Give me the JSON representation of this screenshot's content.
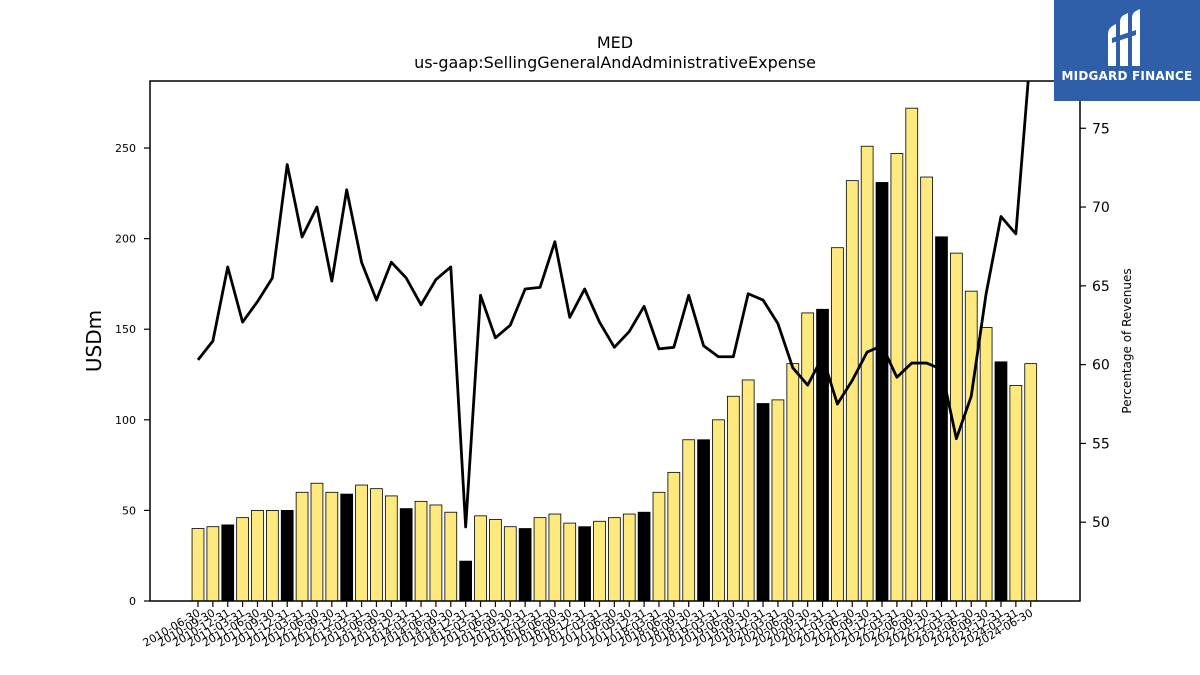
{
  "logo": {
    "text": "MIDGARD FINANCE",
    "icon": "midgard-m-logo",
    "color": "#2f5fa8"
  },
  "chart_data": {
    "type": "bar+line",
    "title": "MED",
    "subtitle": "us-gaap:SellingGeneralAndAdministrativeExpense",
    "ylabel": "USDm",
    "y2label": "Percentage of Revenues",
    "ylim": [
      0,
      287
    ],
    "y2lim": [
      45,
      78
    ],
    "yticks": [
      0,
      50,
      100,
      150,
      200,
      250
    ],
    "y2ticks": [
      50,
      55,
      60,
      65,
      70,
      75
    ],
    "grid": false,
    "colors": {
      "quarter_bar": "#fde97e",
      "annual_bar": "#000000",
      "line": "#000000"
    },
    "categories": [
      "2010-06-30",
      "2010-09-30",
      "2010-12-31",
      "2011-03-31",
      "2011-06-30",
      "2011-09-30",
      "2011-12-31",
      "2012-03-31",
      "2012-06-30",
      "2012-09-30",
      "2012-12-31",
      "2013-03-31",
      "2013-06-30",
      "2013-09-30",
      "2013-12-31",
      "2014-03-31",
      "2014-06-30",
      "2014-09-30",
      "2014-12-31",
      "2015-03-31",
      "2015-06-30",
      "2015-09-30",
      "2015-12-31",
      "2016-03-31",
      "2016-06-30",
      "2016-09-30",
      "2016-12-31",
      "2017-03-31",
      "2017-06-30",
      "2017-09-30",
      "2017-12-31",
      "2018-03-31",
      "2018-06-30",
      "2018-09-30",
      "2018-12-31",
      "2019-03-31",
      "2019-06-30",
      "2019-09-30",
      "2019-12-31",
      "2020-03-31",
      "2020-06-30",
      "2020-09-30",
      "2020-12-31",
      "2021-03-31",
      "2021-06-30",
      "2021-09-30",
      "2021-12-31",
      "2022-03-31",
      "2022-06-30",
      "2022-09-30",
      "2022-12-31",
      "2023-03-31",
      "2023-06-30",
      "2023-09-30",
      "2023-12-31",
      "2024-03-31",
      "2024-06-30"
    ],
    "visible_tick_labels": [
      "2010-06-30",
      "2010-09-30",
      "2010-12-31",
      "2011-03-31",
      "2011-06-30",
      "2011-09-30",
      "2011-12-31",
      "2012-03-31",
      "2012-06-30",
      "2012-09-30",
      "2012-12-31",
      "2013-03-31",
      "2013-06-30",
      "2013-09-30",
      "2013-12-31",
      "2014-03-31",
      "2014-06-30",
      "2014-09-30",
      "2014-12-31",
      "2015-03-31",
      "2015-06-30",
      "2015-09-30",
      "2015-12-31",
      "2016-03-31",
      "2016-06-30",
      "2016-09-30",
      "2016-12-31",
      "2017-03-31",
      "2017-06-30",
      "2017-09-30",
      "2017-12-31",
      "2018-03-31",
      "2018-06-30",
      "2018-09-30",
      "2018-12-31",
      "2019-03-31",
      "2019-06-30",
      "2019-09-30",
      "2019-12-31",
      "2020-03-31",
      "2020-06-30",
      "2020-09-30",
      "2020-12-31",
      "2021-03-31",
      "2021-06-30",
      "2021-09-30",
      "2021-12-31",
      "2022-03-31",
      "2022-06-30",
      "2022-09-30",
      "2022-12-31",
      "2023-03-31",
      "2023-06-30",
      "2023-09-30",
      "2023-12-31",
      "2024-03-31",
      "2024-06-30"
    ],
    "bar_values": [
      40,
      41,
      42,
      46,
      50,
      50,
      50,
      60,
      65,
      60,
      59,
      64,
      62,
      58,
      51,
      55,
      53,
      49,
      22,
      47,
      45,
      41,
      40,
      46,
      48,
      43,
      41,
      44,
      46,
      48,
      49,
      60,
      71,
      89,
      89,
      100,
      113,
      122,
      109,
      111,
      131,
      159,
      161,
      195,
      232,
      251,
      231,
      247,
      272,
      234,
      201,
      192,
      171,
      151,
      132,
      119,
      131
    ],
    "annual_flags": [
      0,
      0,
      1,
      0,
      0,
      0,
      1,
      0,
      0,
      0,
      1,
      0,
      0,
      0,
      1,
      0,
      0,
      0,
      1,
      0,
      0,
      0,
      1,
      0,
      0,
      0,
      1,
      0,
      0,
      0,
      1,
      0,
      0,
      0,
      1,
      0,
      0,
      0,
      1,
      0,
      0,
      0,
      1,
      0,
      0,
      0,
      1,
      0,
      0,
      0,
      1,
      0,
      0,
      0,
      1,
      0,
      0
    ],
    "line_values": [
      60.3,
      61.5,
      66.2,
      62.7,
      64.0,
      65.5,
      72.7,
      68.1,
      70.0,
      65.3,
      71.1,
      66.5,
      64.1,
      66.5,
      65.5,
      63.8,
      65.4,
      66.2,
      49.7,
      64.4,
      61.7,
      62.5,
      64.8,
      64.9,
      67.8,
      63.0,
      64.8,
      62.7,
      61.1,
      62.1,
      63.7,
      61.0,
      61.1,
      64.4,
      61.2,
      60.5,
      60.5,
      64.5,
      64.1,
      62.6,
      59.8,
      58.7,
      60.5,
      57.5,
      59.0,
      60.8,
      61.2,
      59.2,
      60.1,
      60.1,
      59.7,
      55.3,
      58.0,
      64.5,
      69.4,
      68.3,
      80.0
    ]
  }
}
